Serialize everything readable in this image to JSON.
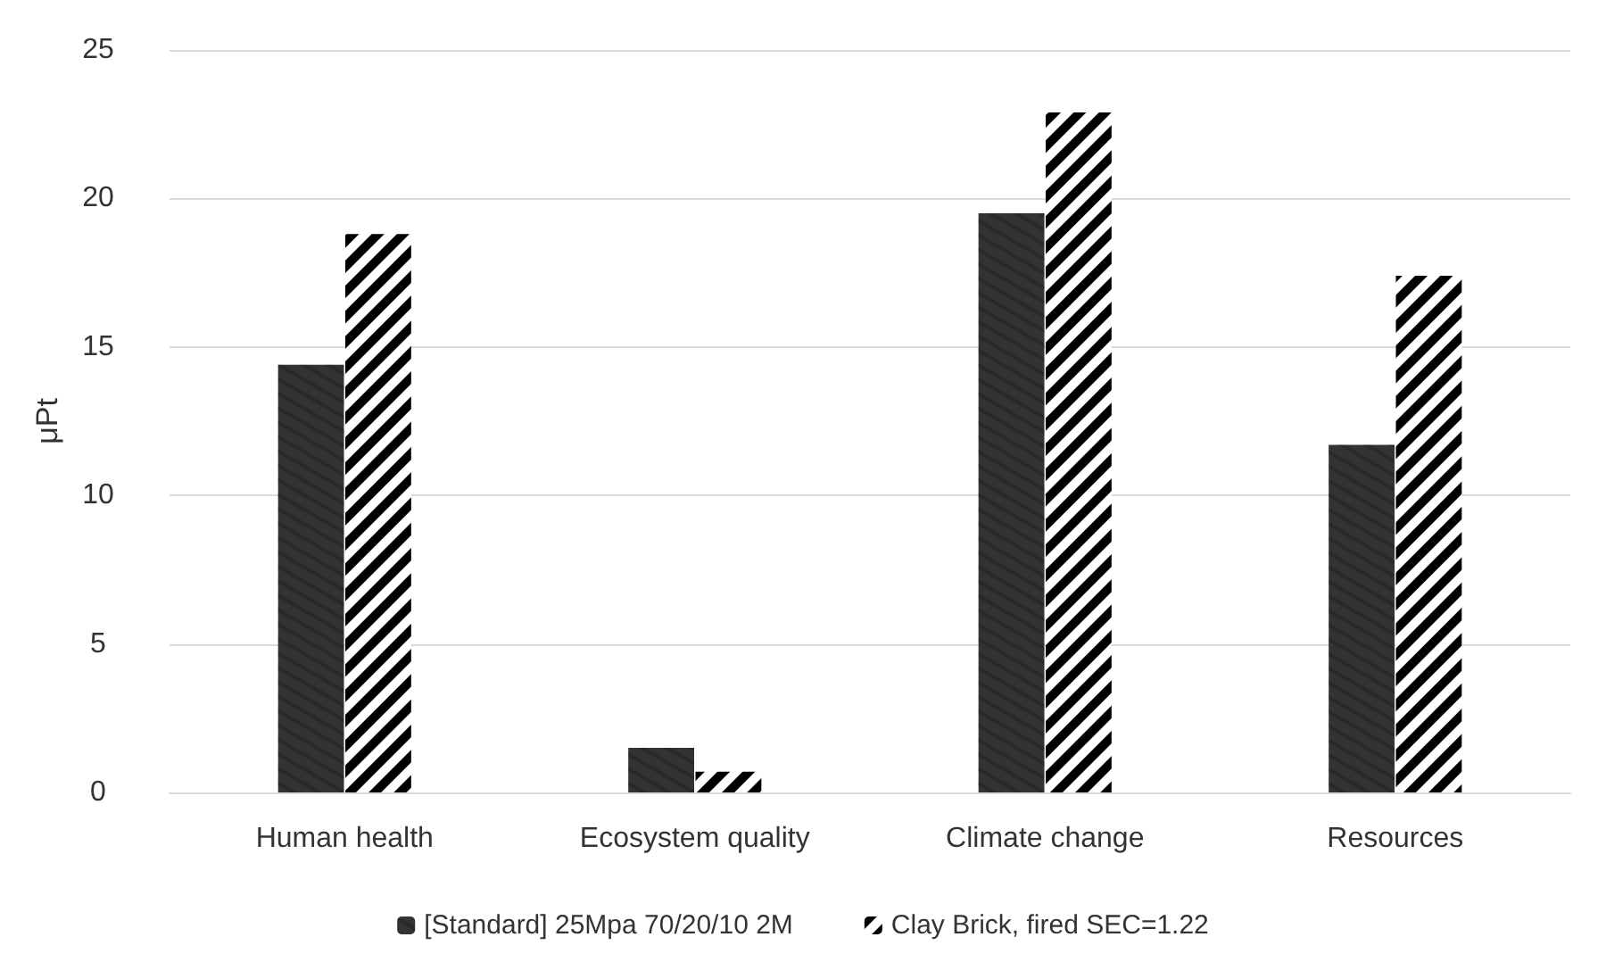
{
  "chart_data": {
    "type": "bar",
    "ylabel": "μPt",
    "categories": [
      "Human health",
      "Ecosystem quality",
      "Climate change",
      "Resources"
    ],
    "series": [
      {
        "name": "[Standard] 25Mpa 70/20/10 2M",
        "color": "#333333",
        "values": [
          14.4,
          1.5,
          19.5,
          11.7
        ]
      },
      {
        "name": "Clay Brick, fired SEC=1.22",
        "color": "#000000",
        "values": [
          18.8,
          0.7,
          22.9,
          17.4
        ]
      }
    ],
    "ylim": [
      0,
      25
    ],
    "yticks": [
      0,
      5,
      10,
      15,
      20,
      25
    ],
    "grid": "y",
    "legend": "bottom"
  }
}
